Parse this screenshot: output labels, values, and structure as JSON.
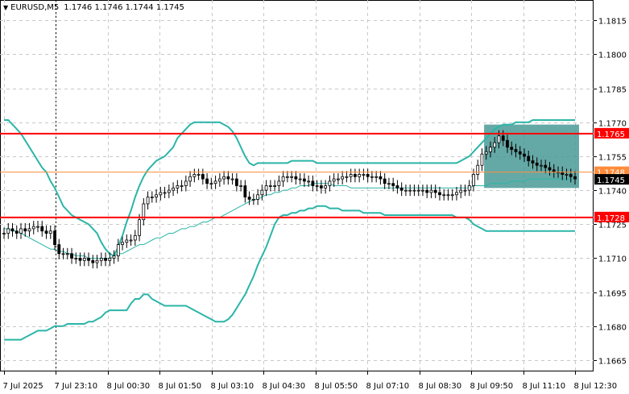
{
  "header": {
    "symbol": "EURUSD,M5",
    "open": "1.1746",
    "high": "1.1746",
    "low": "1.1744",
    "close": "1.1745"
  },
  "colors": {
    "bollinger": "#2bb5a8",
    "level_line": "#ff0000",
    "bid_line": "#ff8c3a",
    "highlight_box": "#4a9a96",
    "grid": "#c8c8c8",
    "candle": "#000000"
  },
  "chart_data": {
    "type": "candlestick",
    "symbol": "EURUSD",
    "timeframe": "M5",
    "grid": true,
    "ylim": [
      1.166,
      1.1824
    ],
    "y_ticks": [
      "1.1815",
      "1.1800",
      "1.1785",
      "1.1770",
      "1.1755",
      "1.1740",
      "1.1725",
      "1.1710",
      "1.1695",
      "1.1680",
      "1.1665"
    ],
    "x_labels": [
      "7 Jul 2025",
      "7 Jul 23:10",
      "8 Jul 00:30",
      "8 Jul 01:50",
      "8 Jul 03:10",
      "8 Jul 04:30",
      "8 Jul 05:50",
      "8 Jul 07:10",
      "8 Jul 08:30",
      "8 Jul 09:50",
      "8 Jul 11:10",
      "8 Jul 12:30"
    ],
    "levels": [
      {
        "label": "1.1765",
        "value": 1.1765
      },
      {
        "label": "1.1728",
        "value": 1.1728
      }
    ],
    "bid": {
      "label": "1.1748",
      "value": 1.1748
    },
    "last": {
      "label": "1.1745",
      "value": 1.1745
    },
    "session_divider_x_label": "7 Jul 23:10",
    "highlight_range": {
      "x_start": "8 Jul 09:50",
      "x_end": "8 Jul 12:30",
      "y_top": 1.1769,
      "y_bottom": 1.1741
    },
    "closes": [
      1.1721,
      1.1723,
      1.1722,
      1.1721,
      1.1723,
      1.1722,
      1.1723,
      1.1724,
      1.1724,
      1.1722,
      1.1721,
      1.1722,
      1.1716,
      1.1712,
      1.1712,
      1.1712,
      1.171,
      1.171,
      1.1709,
      1.171,
      1.1709,
      1.1708,
      1.1709,
      1.171,
      1.1709,
      1.171,
      1.1711,
      1.1716,
      1.1717,
      1.1718,
      1.1718,
      1.172,
      1.1727,
      1.1734,
      1.1737,
      1.1737,
      1.1738,
      1.1739,
      1.1739,
      1.174,
      1.1741,
      1.1742,
      1.1742,
      1.1744,
      1.1746,
      1.1747,
      1.1747,
      1.1745,
      1.1743,
      1.1743,
      1.1744,
      1.1745,
      1.1746,
      1.1745,
      1.1745,
      1.1742,
      1.1742,
      1.1737,
      1.1736,
      1.1736,
      1.1738,
      1.174,
      1.1742,
      1.1742,
      1.1742,
      1.1744,
      1.1746,
      1.1746,
      1.1746,
      1.1745,
      1.1745,
      1.1744,
      1.1744,
      1.1742,
      1.1742,
      1.1741,
      1.1742,
      1.1744,
      1.1745,
      1.1745,
      1.1746,
      1.1746,
      1.1747,
      1.1746,
      1.1747,
      1.1747,
      1.1746,
      1.1746,
      1.1746,
      1.1745,
      1.1743,
      1.1743,
      1.1742,
      1.1741,
      1.174,
      1.174,
      1.174,
      1.174,
      1.174,
      1.174,
      1.1739,
      1.174,
      1.1739,
      1.1738,
      1.1738,
      1.1738,
      1.1738,
      1.1739,
      1.174,
      1.174,
      1.1742,
      1.1747,
      1.1751,
      1.1756,
      1.1757,
      1.1759,
      1.1761,
      1.1764,
      1.1762,
      1.1759,
      1.1758,
      1.1757,
      1.1756,
      1.1755,
      1.1753,
      1.1752,
      1.1751,
      1.1751,
      1.175,
      1.1749,
      1.1748,
      1.1748,
      1.1747,
      1.1747,
      1.1746,
      1.1745
    ],
    "bb_upper": [
      1.1771,
      1.1771,
      1.1769,
      1.1767,
      1.1765,
      1.1762,
      1.1759,
      1.1756,
      1.1753,
      1.175,
      1.1748,
      1.1744,
      1.1741,
      1.1737,
      1.1733,
      1.1731,
      1.1729,
      1.1728,
      1.1727,
      1.1726,
      1.1725,
      1.1723,
      1.1721,
      1.1717,
      1.1714,
      1.1712,
      1.1711,
      1.1715,
      1.172,
      1.1726,
      1.1731,
      1.1737,
      1.1742,
      1.1746,
      1.1749,
      1.1751,
      1.1753,
      1.1754,
      1.1755,
      1.1757,
      1.1759,
      1.1763,
      1.1765,
      1.1767,
      1.1769,
      1.177,
      1.177,
      1.177,
      1.177,
      1.177,
      1.177,
      1.177,
      1.1769,
      1.1768,
      1.1766,
      1.1763,
      1.1759,
      1.1755,
      1.1752,
      1.1751,
      1.1752,
      1.1752,
      1.1752,
      1.1752,
      1.1752,
      1.1752,
      1.1752,
      1.1752,
      1.1753,
      1.1753,
      1.1753,
      1.1753,
      1.1753,
      1.1753,
      1.1752,
      1.1752,
      1.1752,
      1.1752,
      1.1752,
      1.1752,
      1.1752,
      1.1752,
      1.1752,
      1.1752,
      1.1752,
      1.1752,
      1.1752,
      1.1752,
      1.1752,
      1.1752,
      1.1752,
      1.1752,
      1.1752,
      1.1752,
      1.1752,
      1.1752,
      1.1752,
      1.1752,
      1.1752,
      1.1752,
      1.1752,
      1.1752,
      1.1752,
      1.1752,
      1.1752,
      1.1752,
      1.1752,
      1.1752,
      1.1753,
      1.1754,
      1.1755,
      1.1757,
      1.1759,
      1.1761,
      1.1763,
      1.1765,
      1.1767,
      1.1768,
      1.1769,
      1.1769,
      1.1769,
      1.177,
      1.177,
      1.177,
      1.177,
      1.1771,
      1.1771,
      1.1771,
      1.1771,
      1.1771,
      1.1771,
      1.1771,
      1.1771,
      1.1771,
      1.1771,
      1.1771
    ],
    "bb_middle": [
      1.1723,
      1.1723,
      1.1722,
      1.1722,
      1.1721,
      1.172,
      1.1719,
      1.1718,
      1.1717,
      1.1716,
      1.1715,
      1.1714,
      1.1714,
      1.1713,
      1.1713,
      1.1712,
      1.1712,
      1.1711,
      1.1711,
      1.1711,
      1.171,
      1.171,
      1.171,
      1.171,
      1.171,
      1.171,
      1.1711,
      1.1712,
      1.1712,
      1.1713,
      1.1714,
      1.1715,
      1.1716,
      1.1716,
      1.1717,
      1.1718,
      1.1719,
      1.1719,
      1.172,
      1.1721,
      1.1721,
      1.1722,
      1.1723,
      1.1723,
      1.1724,
      1.1724,
      1.1725,
      1.1726,
      1.1726,
      1.1727,
      1.1728,
      1.1728,
      1.1729,
      1.173,
      1.1731,
      1.1732,
      1.1733,
      1.1734,
      1.1735,
      1.1736,
      1.1736,
      1.1737,
      1.1738,
      1.1738,
      1.1739,
      1.1739,
      1.174,
      1.174,
      1.1741,
      1.1741,
      1.1742,
      1.1742,
      1.1742,
      1.1743,
      1.1743,
      1.1743,
      1.1743,
      1.1743,
      1.1742,
      1.1742,
      1.1742,
      1.1742,
      1.1741,
      1.1741,
      1.1741,
      1.1741,
      1.1741,
      1.1741,
      1.1741,
      1.1741,
      1.1741,
      1.1741,
      1.1741,
      1.1741,
      1.1741,
      1.1741,
      1.1741,
      1.1741,
      1.1741,
      1.1741,
      1.1741,
      1.1741,
      1.1741,
      1.1741,
      1.1741,
      1.1741,
      1.1741,
      1.1741,
      1.1741,
      1.1741,
      1.1741,
      1.1742,
      1.1742,
      1.1742,
      1.1742,
      1.1743,
      1.1743,
      1.1743,
      1.1743,
      1.1743,
      1.1744,
      1.1744,
      1.1744,
      1.1744,
      1.1745,
      1.1745,
      1.1745,
      1.1745,
      1.1745,
      1.1745,
      1.1745,
      1.1745,
      1.1745,
      1.1745,
      1.1745,
      1.1745
    ],
    "bb_lower": [
      1.1674,
      1.1674,
      1.1674,
      1.1674,
      1.1674,
      1.1675,
      1.1676,
      1.1677,
      1.1678,
      1.1678,
      1.1678,
      1.1679,
      1.168,
      1.168,
      1.168,
      1.1681,
      1.1681,
      1.1681,
      1.1681,
      1.1681,
      1.1682,
      1.1682,
      1.1683,
      1.1684,
      1.1686,
      1.1687,
      1.1687,
      1.1687,
      1.1687,
      1.1687,
      1.169,
      1.1692,
      1.1692,
      1.1694,
      1.1694,
      1.1692,
      1.1691,
      1.169,
      1.1689,
      1.1689,
      1.1689,
      1.1689,
      1.1689,
      1.1689,
      1.1688,
      1.1687,
      1.1686,
      1.1685,
      1.1684,
      1.1683,
      1.1682,
      1.1682,
      1.1682,
      1.1683,
      1.1685,
      1.1688,
      1.1691,
      1.1694,
      1.1698,
      1.1702,
      1.1707,
      1.1711,
      1.1715,
      1.172,
      1.1725,
      1.1728,
      1.1729,
      1.1729,
      1.173,
      1.173,
      1.1731,
      1.1731,
      1.1732,
      1.1732,
      1.1733,
      1.1733,
      1.1733,
      1.1732,
      1.1732,
      1.1732,
      1.1731,
      1.1731,
      1.1731,
      1.1731,
      1.1731,
      1.173,
      1.173,
      1.173,
      1.173,
      1.173,
      1.1729,
      1.1729,
      1.1729,
      1.1729,
      1.1729,
      1.1729,
      1.1729,
      1.1729,
      1.1729,
      1.1729,
      1.1729,
      1.1729,
      1.1729,
      1.1729,
      1.1729,
      1.1729,
      1.1729,
      1.1728,
      1.1728,
      1.1728,
      1.1727,
      1.1725,
      1.1724,
      1.1723,
      1.1722,
      1.1722,
      1.1722,
      1.1722,
      1.1722,
      1.1722,
      1.1722,
      1.1722,
      1.1722,
      1.1722,
      1.1722,
      1.1722,
      1.1722,
      1.1722,
      1.1722,
      1.1722,
      1.1722,
      1.1722,
      1.1722,
      1.1722,
      1.1722,
      1.1722
    ]
  }
}
